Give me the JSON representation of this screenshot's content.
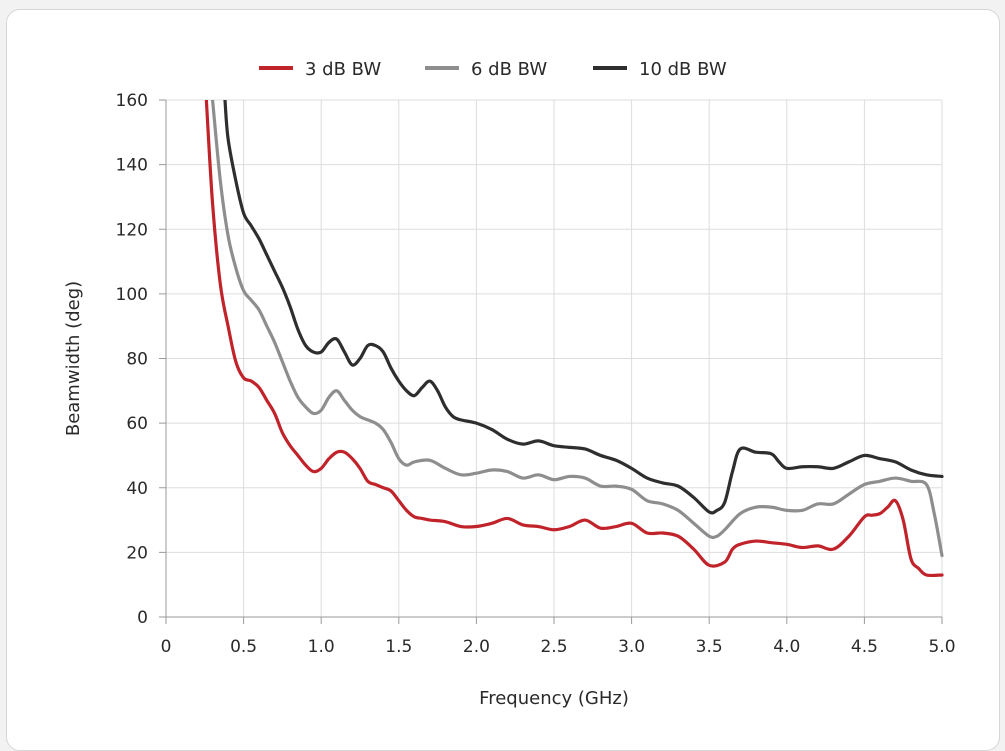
{
  "chart_data": {
    "type": "line",
    "title": "",
    "xlabel": "Frequency (GHz)",
    "ylabel": "Beamwidth (deg)",
    "xlim": [
      0,
      5.0
    ],
    "ylim": [
      0,
      160
    ],
    "x_ticks": [
      "0",
      "0.5",
      "1.0",
      "1.5",
      "2.0",
      "2.5",
      "3.0",
      "3.5",
      "4.0",
      "4.5",
      "5.0"
    ],
    "y_ticks": [
      "0",
      "20",
      "40",
      "60",
      "80",
      "100",
      "120",
      "140",
      "160"
    ],
    "grid": true,
    "legend_position": "top-center",
    "series": [
      {
        "name": "3 dB BW",
        "color": "#c0232a",
        "points": [
          [
            0.26,
            160
          ],
          [
            0.3,
            128
          ],
          [
            0.35,
            103
          ],
          [
            0.4,
            90
          ],
          [
            0.45,
            79
          ],
          [
            0.5,
            74
          ],
          [
            0.55,
            73
          ],
          [
            0.6,
            71
          ],
          [
            0.65,
            67
          ],
          [
            0.7,
            63
          ],
          [
            0.75,
            57
          ],
          [
            0.8,
            53
          ],
          [
            0.85,
            50
          ],
          [
            0.9,
            47
          ],
          [
            0.95,
            45
          ],
          [
            1.0,
            46
          ],
          [
            1.05,
            49
          ],
          [
            1.1,
            51
          ],
          [
            1.15,
            51
          ],
          [
            1.2,
            49
          ],
          [
            1.25,
            46
          ],
          [
            1.3,
            42
          ],
          [
            1.35,
            41
          ],
          [
            1.4,
            40
          ],
          [
            1.45,
            39
          ],
          [
            1.5,
            36
          ],
          [
            1.55,
            33
          ],
          [
            1.6,
            31
          ],
          [
            1.65,
            30.5
          ],
          [
            1.7,
            30
          ],
          [
            1.8,
            29.5
          ],
          [
            1.9,
            28
          ],
          [
            2.0,
            28
          ],
          [
            2.1,
            29
          ],
          [
            2.2,
            30.5
          ],
          [
            2.3,
            28.5
          ],
          [
            2.4,
            28
          ],
          [
            2.5,
            27
          ],
          [
            2.6,
            28
          ],
          [
            2.7,
            30
          ],
          [
            2.8,
            27.5
          ],
          [
            2.9,
            28
          ],
          [
            3.0,
            29
          ],
          [
            3.1,
            26
          ],
          [
            3.2,
            26
          ],
          [
            3.3,
            25
          ],
          [
            3.4,
            21
          ],
          [
            3.5,
            16
          ],
          [
            3.6,
            17
          ],
          [
            3.65,
            21
          ],
          [
            3.7,
            22.5
          ],
          [
            3.8,
            23.5
          ],
          [
            3.9,
            23
          ],
          [
            4.0,
            22.5
          ],
          [
            4.1,
            21.5
          ],
          [
            4.2,
            22
          ],
          [
            4.3,
            21
          ],
          [
            4.4,
            25
          ],
          [
            4.5,
            31
          ],
          [
            4.55,
            31.5
          ],
          [
            4.6,
            32
          ],
          [
            4.65,
            34
          ],
          [
            4.7,
            36
          ],
          [
            4.75,
            30
          ],
          [
            4.8,
            18
          ],
          [
            4.85,
            15
          ],
          [
            4.9,
            13
          ],
          [
            5.0,
            13
          ]
        ]
      },
      {
        "name": "6 dB BW",
        "color": "#8e8e8e",
        "points": [
          [
            0.3,
            160
          ],
          [
            0.35,
            135
          ],
          [
            0.4,
            118
          ],
          [
            0.45,
            108
          ],
          [
            0.5,
            101
          ],
          [
            0.55,
            98
          ],
          [
            0.6,
            95
          ],
          [
            0.65,
            90
          ],
          [
            0.7,
            85
          ],
          [
            0.75,
            79
          ],
          [
            0.8,
            73
          ],
          [
            0.85,
            68
          ],
          [
            0.9,
            65
          ],
          [
            0.95,
            63
          ],
          [
            1.0,
            64
          ],
          [
            1.05,
            68
          ],
          [
            1.1,
            70
          ],
          [
            1.15,
            67
          ],
          [
            1.2,
            64
          ],
          [
            1.25,
            62
          ],
          [
            1.3,
            61
          ],
          [
            1.35,
            60
          ],
          [
            1.4,
            58
          ],
          [
            1.45,
            54
          ],
          [
            1.5,
            49
          ],
          [
            1.55,
            47
          ],
          [
            1.6,
            48
          ],
          [
            1.7,
            48.5
          ],
          [
            1.8,
            46
          ],
          [
            1.9,
            44
          ],
          [
            2.0,
            44.5
          ],
          [
            2.1,
            45.5
          ],
          [
            2.2,
            45
          ],
          [
            2.3,
            43
          ],
          [
            2.4,
            44
          ],
          [
            2.5,
            42.5
          ],
          [
            2.6,
            43.5
          ],
          [
            2.7,
            43
          ],
          [
            2.8,
            40.5
          ],
          [
            2.9,
            40.5
          ],
          [
            3.0,
            39.5
          ],
          [
            3.1,
            36
          ],
          [
            3.2,
            35
          ],
          [
            3.3,
            33
          ],
          [
            3.4,
            29
          ],
          [
            3.5,
            25
          ],
          [
            3.55,
            25
          ],
          [
            3.6,
            27
          ],
          [
            3.7,
            32
          ],
          [
            3.8,
            34
          ],
          [
            3.9,
            34
          ],
          [
            4.0,
            33
          ],
          [
            4.1,
            33
          ],
          [
            4.2,
            35
          ],
          [
            4.3,
            35
          ],
          [
            4.4,
            38
          ],
          [
            4.5,
            41
          ],
          [
            4.6,
            42
          ],
          [
            4.7,
            43
          ],
          [
            4.8,
            42
          ],
          [
            4.9,
            41
          ],
          [
            4.95,
            32
          ],
          [
            5.0,
            19
          ]
        ]
      },
      {
        "name": "10 dB BW",
        "color": "#2e2e2e",
        "points": [
          [
            0.38,
            160
          ],
          [
            0.4,
            148
          ],
          [
            0.45,
            135
          ],
          [
            0.5,
            125
          ],
          [
            0.55,
            121
          ],
          [
            0.6,
            117
          ],
          [
            0.65,
            112
          ],
          [
            0.7,
            107
          ],
          [
            0.75,
            102
          ],
          [
            0.8,
            96
          ],
          [
            0.85,
            89
          ],
          [
            0.9,
            84
          ],
          [
            0.95,
            82
          ],
          [
            1.0,
            82
          ],
          [
            1.05,
            85
          ],
          [
            1.1,
            86
          ],
          [
            1.15,
            82
          ],
          [
            1.2,
            78
          ],
          [
            1.25,
            80
          ],
          [
            1.3,
            84
          ],
          [
            1.35,
            84
          ],
          [
            1.4,
            82
          ],
          [
            1.45,
            77
          ],
          [
            1.5,
            73
          ],
          [
            1.55,
            70
          ],
          [
            1.6,
            68.5
          ],
          [
            1.65,
            71
          ],
          [
            1.7,
            73
          ],
          [
            1.75,
            70
          ],
          [
            1.8,
            65
          ],
          [
            1.85,
            62
          ],
          [
            1.9,
            61
          ],
          [
            2.0,
            60
          ],
          [
            2.1,
            58
          ],
          [
            2.2,
            55
          ],
          [
            2.3,
            53.5
          ],
          [
            2.4,
            54.5
          ],
          [
            2.5,
            53
          ],
          [
            2.6,
            52.5
          ],
          [
            2.7,
            52
          ],
          [
            2.8,
            50
          ],
          [
            2.9,
            48.5
          ],
          [
            3.0,
            46
          ],
          [
            3.1,
            43
          ],
          [
            3.2,
            41.5
          ],
          [
            3.3,
            40.5
          ],
          [
            3.4,
            37
          ],
          [
            3.5,
            32.5
          ],
          [
            3.55,
            33
          ],
          [
            3.6,
            35.5
          ],
          [
            3.65,
            45
          ],
          [
            3.7,
            52
          ],
          [
            3.8,
            51
          ],
          [
            3.9,
            50.5
          ],
          [
            3.95,
            48
          ],
          [
            4.0,
            46
          ],
          [
            4.1,
            46.5
          ],
          [
            4.2,
            46.5
          ],
          [
            4.3,
            46
          ],
          [
            4.4,
            48
          ],
          [
            4.5,
            50
          ],
          [
            4.6,
            49
          ],
          [
            4.7,
            48
          ],
          [
            4.8,
            45.5
          ],
          [
            4.9,
            44
          ],
          [
            5.0,
            43.5
          ]
        ]
      }
    ]
  }
}
